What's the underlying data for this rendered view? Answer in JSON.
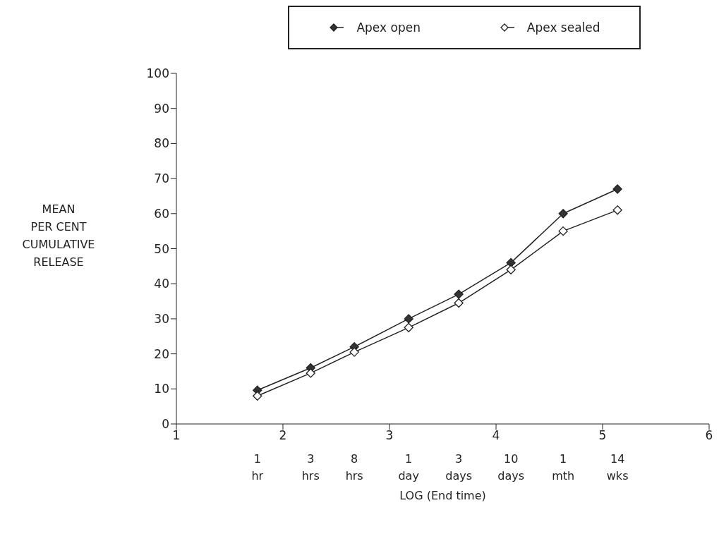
{
  "chart_data": {
    "type": "line",
    "xlabel": "LOG (End time)",
    "ylabel": "MEAN\nPER CENT\nCUMULATIVE\nRELEASE",
    "x": [
      1.76,
      2.26,
      2.67,
      3.18,
      3.65,
      4.14,
      4.63,
      5.14
    ],
    "series": [
      {
        "name": "Apex open",
        "color": "#333333",
        "values": [
          9.6,
          16,
          22,
          30,
          37,
          46,
          60,
          67
        ]
      },
      {
        "name": "Apex sealed",
        "color": "#ffffff",
        "values": [
          8,
          14.5,
          20.5,
          27.5,
          34.5,
          44,
          55,
          61
        ]
      }
    ],
    "xlim": [
      1,
      6
    ],
    "xticks": [
      1,
      2,
      3,
      4,
      5,
      6
    ],
    "ylim": [
      0,
      100
    ],
    "yticks": [
      0,
      10,
      20,
      30,
      40,
      50,
      60,
      70,
      80,
      90,
      100
    ],
    "annotations": [
      "1 hr",
      "3 hrs",
      "8 hrs",
      "1 day",
      "3 days",
      "10 days",
      "1 mth",
      "14 wks"
    ],
    "marker": "diamond",
    "legend": "top",
    "grid": false
  }
}
